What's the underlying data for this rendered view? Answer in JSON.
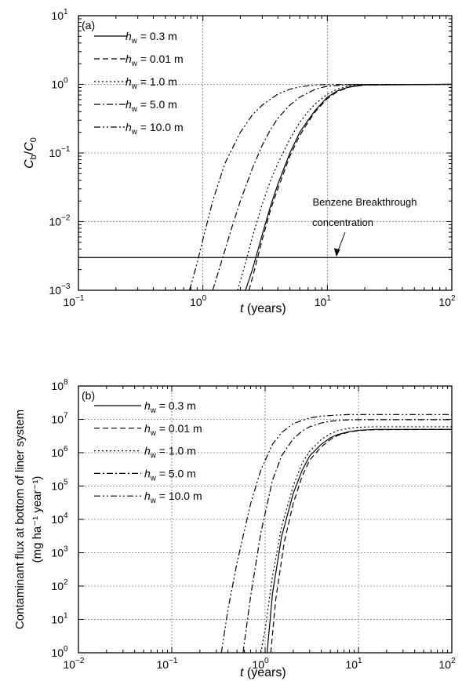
{
  "chart_data": [
    {
      "type": "line",
      "panel": "(a)",
      "xscale": "log",
      "yscale": "log",
      "xlim": [
        0.1,
        100
      ],
      "ylim": [
        0.001,
        10
      ],
      "x_ticks": [
        0.1,
        1,
        10,
        100
      ],
      "y_ticks": [
        0.001,
        0.01,
        0.1,
        1,
        10
      ],
      "xlabel": {
        "var": "t",
        "rest": " (years)"
      },
      "ylabel": {
        "var": "C",
        "sub": "b",
        "div": "/",
        "var2": "C",
        "sub2": "0"
      },
      "grid": true,
      "legend_position": "top-left",
      "series": [
        {
          "name": {
            "var": "h",
            "sub": "w",
            "rest": " = 0.3 m"
          },
          "dash": "solid",
          "x": [
            2.2,
            2.5,
            3,
            3.5,
            4,
            5,
            6,
            7,
            8,
            10,
            12,
            15,
            20,
            100
          ],
          "y": [
            0.001,
            0.002,
            0.0065,
            0.017,
            0.035,
            0.1,
            0.2,
            0.3,
            0.42,
            0.65,
            0.8,
            0.92,
            0.98,
            1.0
          ]
        },
        {
          "name": {
            "var": "h",
            "sub": "w",
            "rest": " = 0.01 m"
          },
          "dash": "dashed",
          "x": [
            2.35,
            2.6,
            3,
            3.5,
            4,
            5,
            6,
            7,
            8,
            10,
            12,
            15,
            20,
            100
          ],
          "y": [
            0.001,
            0.002,
            0.0055,
            0.015,
            0.03,
            0.09,
            0.18,
            0.28,
            0.4,
            0.62,
            0.78,
            0.91,
            0.98,
            1.0
          ]
        },
        {
          "name": {
            "var": "h",
            "sub": "w",
            "rest": " = 1.0 m"
          },
          "dash": "dotted",
          "x": [
            1.9,
            2.2,
            2.5,
            3,
            3.5,
            4,
            5,
            6,
            7,
            8,
            10,
            12,
            15,
            20,
            100
          ],
          "y": [
            0.001,
            0.0025,
            0.006,
            0.018,
            0.04,
            0.07,
            0.16,
            0.28,
            0.4,
            0.52,
            0.72,
            0.85,
            0.95,
            0.99,
            1.0
          ]
        },
        {
          "name": {
            "var": "h",
            "sub": "w",
            "rest": " = 5.0 m"
          },
          "dash": "dashdot",
          "x": [
            1.2,
            1.4,
            1.7,
            2,
            2.5,
            3,
            3.5,
            4,
            5,
            6,
            8,
            10,
            15,
            100
          ],
          "y": [
            0.001,
            0.0025,
            0.008,
            0.02,
            0.06,
            0.13,
            0.22,
            0.32,
            0.5,
            0.65,
            0.85,
            0.94,
            0.99,
            1.0
          ]
        },
        {
          "name": {
            "var": "h",
            "sub": "w",
            "rest": " = 10.0 m"
          },
          "dash": "dashdotdot",
          "x": [
            0.78,
            0.9,
            1,
            1.2,
            1.5,
            2,
            2.5,
            3,
            4,
            5,
            6,
            8,
            10,
            100
          ],
          "y": [
            0.001,
            0.0025,
            0.0055,
            0.02,
            0.07,
            0.2,
            0.36,
            0.5,
            0.72,
            0.85,
            0.92,
            0.98,
            0.995,
            1.0
          ]
        }
      ],
      "reference_line": {
        "y": 0.003
      },
      "annotation": {
        "text": [
          "Benzene Breakthrough",
          "concentration"
        ],
        "arrow_to": {
          "x": 12,
          "y": 0.003
        }
      }
    },
    {
      "type": "line",
      "panel": "(b)",
      "xscale": "log",
      "yscale": "log",
      "xlim": [
        0.01,
        100
      ],
      "ylim": [
        1,
        100000000
      ],
      "x_ticks": [
        0.01,
        0.1,
        1,
        10,
        100
      ],
      "y_ticks": [
        1,
        10,
        100,
        1000,
        10000,
        100000,
        1000000,
        10000000,
        100000000
      ],
      "xlabel": {
        "var": "t",
        "rest": " (years)"
      },
      "ylabel": {
        "line1": "Contaminant flux at bottom of liner system",
        "line2": "(mg ha⁻¹ year⁻¹)"
      },
      "grid": true,
      "legend_position": "top-left",
      "series": [
        {
          "name": {
            "var": "h",
            "sub": "w",
            "rest": " = 0.3 m"
          },
          "dash": "solid",
          "x": [
            1.05,
            1.2,
            1.5,
            2,
            2.5,
            3,
            4,
            5,
            6,
            8,
            10,
            15,
            100
          ],
          "y": [
            1,
            60,
            3000,
            60000,
            300000,
            800000,
            1800000,
            2800000,
            3500000,
            4300000,
            4700000,
            5000000,
            5000000
          ]
        },
        {
          "name": {
            "var": "h",
            "sub": "w",
            "rest": " = 0.01 m"
          },
          "dash": "dashed",
          "x": [
            1.15,
            1.3,
            1.6,
            2,
            2.5,
            3,
            4,
            5,
            6,
            8,
            10,
            15,
            100
          ],
          "y": [
            1,
            40,
            2000,
            30000,
            200000,
            600000,
            1500000,
            2500000,
            3300000,
            4200000,
            4600000,
            4900000,
            5000000
          ]
        },
        {
          "name": {
            "var": "h",
            "sub": "w",
            "rest": " = 1.0 m"
          },
          "dash": "dotted",
          "x": [
            0.9,
            1,
            1.2,
            1.5,
            2,
            2.5,
            3,
            4,
            5,
            6,
            8,
            10,
            15,
            100
          ],
          "y": [
            1,
            5,
            200,
            6000,
            100000,
            500000,
            1100000,
            2500000,
            3700000,
            4600000,
            5400000,
            5800000,
            6000000,
            6000000
          ]
        },
        {
          "name": {
            "var": "h",
            "sub": "w",
            "rest": " = 5.0 m"
          },
          "dash": "dashdot",
          "x": [
            0.58,
            0.7,
            0.9,
            1.2,
            1.5,
            2,
            2.5,
            3,
            4,
            5,
            7,
            10,
            100
          ],
          "y": [
            1,
            50,
            4000,
            150000,
            800000,
            2600000,
            4500000,
            6000000,
            7800000,
            8800000,
            9500000,
            9800000,
            9800000
          ]
        },
        {
          "name": {
            "var": "h",
            "sub": "w",
            "rest": " = 10.0 m"
          },
          "dash": "dashdotdot",
          "x": [
            0.34,
            0.4,
            0.5,
            0.7,
            0.9,
            1.2,
            1.5,
            2,
            3,
            4,
            6,
            8,
            100
          ],
          "y": [
            1,
            20,
            500,
            30000,
            300000,
            1800000,
            4000000,
            7500000,
            11000000,
            12500000,
            13500000,
            14000000,
            14000000
          ]
        }
      ]
    }
  ]
}
